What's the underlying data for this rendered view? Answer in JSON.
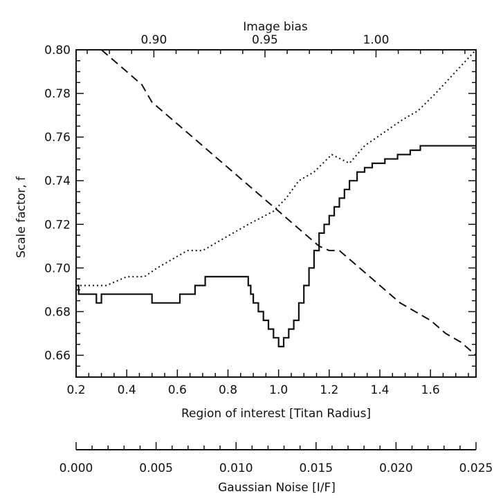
{
  "chart_data": {
    "type": "line",
    "xlabel": "Region of interest [Titan Radius]",
    "ylabel": "Scale factor, f",
    "xlim": [
      0.2,
      1.78
    ],
    "ylim": [
      0.65,
      0.8
    ],
    "xticks": [
      "0.2",
      "0.4",
      "0.6",
      "0.8",
      "1.0",
      "1.2",
      "1.4",
      "1.6"
    ],
    "yticks": [
      "0.66",
      "0.68",
      "0.70",
      "0.72",
      "0.74",
      "0.76",
      "0.78",
      "0.80"
    ],
    "top_axis": {
      "label": "Image bias",
      "range": [
        0.865,
        1.045
      ],
      "ticks": [
        "0.90",
        "0.95",
        "1.00"
      ]
    },
    "extra_axis": {
      "label": "Gaussian Noise [I/F]",
      "range": [
        0.0,
        0.025
      ],
      "ticks": [
        "0.000",
        "0.005",
        "0.010",
        "0.015",
        "0.020",
        "0.025"
      ]
    },
    "series": [
      {
        "style": "solid-step",
        "x": [
          0.2,
          0.21,
          0.27,
          0.28,
          0.29,
          0.3,
          0.49,
          0.5,
          0.6,
          0.61,
          0.66,
          0.67,
          0.7,
          0.71,
          0.87,
          0.88,
          0.89,
          0.9,
          0.92,
          0.94,
          0.96,
          0.98,
          1.0,
          1.02,
          1.04,
          1.06,
          1.08,
          1.1,
          1.12,
          1.14,
          1.16,
          1.18,
          1.2,
          1.22,
          1.24,
          1.26,
          1.28,
          1.31,
          1.34,
          1.37,
          1.42,
          1.47,
          1.52,
          1.56,
          1.62,
          1.68,
          1.78
        ],
        "y": [
          0.692,
          0.688,
          0.688,
          0.684,
          0.684,
          0.688,
          0.688,
          0.684,
          0.684,
          0.688,
          0.688,
          0.692,
          0.692,
          0.696,
          0.696,
          0.692,
          0.688,
          0.684,
          0.68,
          0.676,
          0.672,
          0.668,
          0.664,
          0.668,
          0.672,
          0.676,
          0.684,
          0.692,
          0.7,
          0.708,
          0.716,
          0.72,
          0.724,
          0.728,
          0.732,
          0.736,
          0.74,
          0.744,
          0.746,
          0.748,
          0.75,
          0.752,
          0.754,
          0.756,
          0.756,
          0.756,
          0.756
        ]
      },
      {
        "style": "dotted",
        "x": [
          0.2,
          0.25,
          0.32,
          0.36,
          0.4,
          0.47,
          0.52,
          0.58,
          0.64,
          0.7,
          0.76,
          0.82,
          0.88,
          0.93,
          0.98,
          1.03,
          1.08,
          1.14,
          1.21,
          1.28,
          1.34,
          1.39,
          1.44,
          1.49,
          1.55,
          1.62,
          1.7,
          1.78
        ],
        "y": [
          0.692,
          0.692,
          0.692,
          0.694,
          0.696,
          0.696,
          0.7,
          0.704,
          0.708,
          0.708,
          0.712,
          0.716,
          0.72,
          0.723,
          0.726,
          0.732,
          0.74,
          0.744,
          0.752,
          0.748,
          0.756,
          0.76,
          0.764,
          0.768,
          0.772,
          0.78,
          0.79,
          0.8
        ]
      },
      {
        "style": "dashed",
        "x": [
          0.3,
          0.36,
          0.4,
          0.46,
          0.5,
          0.56,
          0.62,
          0.68,
          0.74,
          0.8,
          0.86,
          0.92,
          0.96,
          1.0,
          1.04,
          1.08,
          1.12,
          1.16,
          1.2,
          1.24,
          1.3,
          1.36,
          1.42,
          1.48,
          1.54,
          1.6,
          1.66,
          1.72,
          1.78
        ],
        "y": [
          0.8,
          0.794,
          0.79,
          0.784,
          0.776,
          0.77,
          0.764,
          0.758,
          0.752,
          0.746,
          0.74,
          0.734,
          0.73,
          0.726,
          0.722,
          0.718,
          0.714,
          0.71,
          0.708,
          0.708,
          0.702,
          0.696,
          0.69,
          0.684,
          0.68,
          0.676,
          0.67,
          0.666,
          0.66
        ]
      }
    ]
  }
}
